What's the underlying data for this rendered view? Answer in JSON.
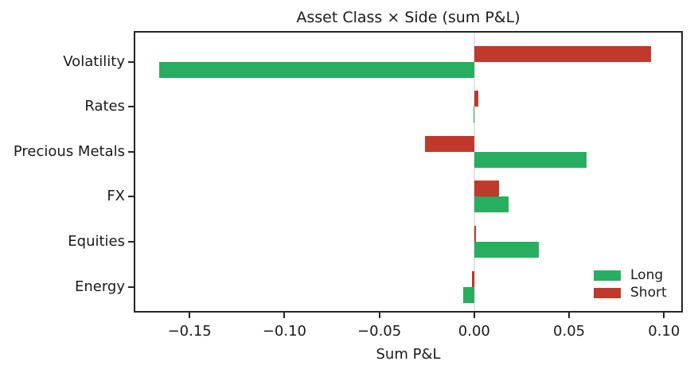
{
  "chart_data": {
    "type": "bar",
    "orientation": "horizontal",
    "title": "Asset Class × Side (sum P&L)",
    "xlabel": "Sum P&L",
    "categories": [
      "Volatility",
      "Rates",
      "Precious Metals",
      "FX",
      "Equities",
      "Energy"
    ],
    "series": [
      {
        "name": "Long",
        "color": "#27ae60",
        "values": [
          -0.166,
          -0.0005,
          0.059,
          0.018,
          0.034,
          -0.006
        ]
      },
      {
        "name": "Short",
        "color": "#c0392b",
        "values": [
          0.093,
          0.002,
          -0.026,
          0.013,
          0.001,
          -0.001
        ]
      }
    ],
    "bar_order_top_to_bottom": [
      "Short",
      "Long"
    ],
    "xticks": [
      -0.15,
      -0.1,
      -0.05,
      0.0,
      0.05,
      0.1
    ],
    "xtick_labels": [
      "−0.15",
      "−0.10",
      "−0.05",
      "0.00",
      "0.05",
      "0.10"
    ],
    "xlim": [
      -0.1786,
      0.1091
    ],
    "grid": false,
    "zero_line": true,
    "zero_line_color": "#e4e4e4",
    "legend_position": "lower right",
    "spine_color": "#262626",
    "background_color": "#ffffff"
  }
}
